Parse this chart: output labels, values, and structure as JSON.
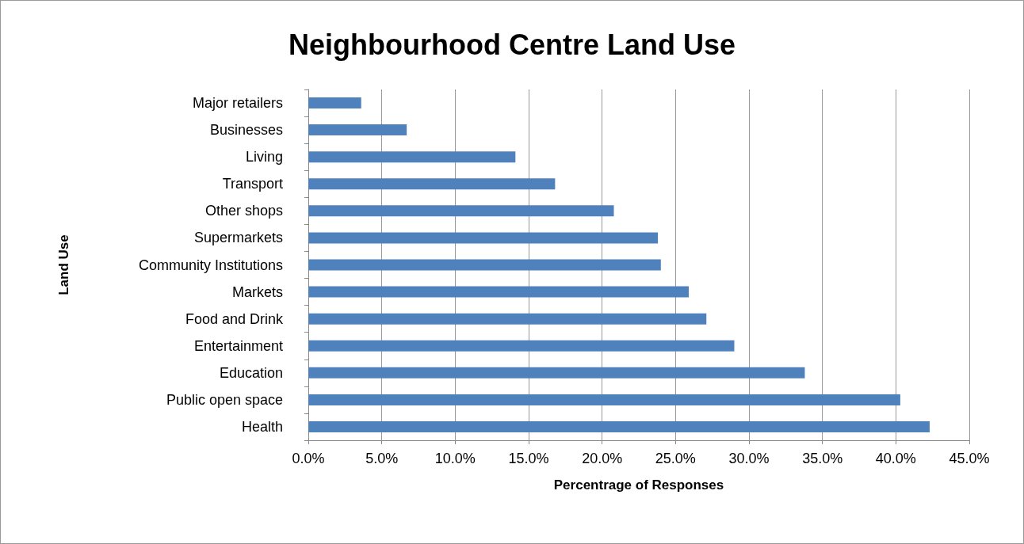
{
  "chart_data": {
    "type": "bar",
    "orientation": "horizontal",
    "title": "Neighbourhood Centre Land Use",
    "xlabel": "Percentrage of Responses",
    "ylabel": "Land Use",
    "categories": [
      "Major retailers",
      "Businesses",
      "Living",
      "Transport",
      "Other shops",
      "Supermarkets",
      "Community Institutions",
      "Markets",
      "Food and Drink",
      "Entertainment",
      "Education",
      "Public open space",
      "Health"
    ],
    "values": [
      3.6,
      6.7,
      14.1,
      16.8,
      20.8,
      23.8,
      24.0,
      25.9,
      27.1,
      29.0,
      33.8,
      40.3,
      42.3
    ],
    "color": "#4f81bd",
    "xlim": [
      0,
      45
    ],
    "xticks": [
      {
        "value": 0,
        "label": "0.0%"
      },
      {
        "value": 5,
        "label": "5.0%"
      },
      {
        "value": 10,
        "label": "10.0%"
      },
      {
        "value": 15,
        "label": "15.0%"
      },
      {
        "value": 20,
        "label": "20.0%"
      },
      {
        "value": 25,
        "label": "25.0%"
      },
      {
        "value": 30,
        "label": "30.0%"
      },
      {
        "value": 35,
        "label": "35.0%"
      },
      {
        "value": 40,
        "label": "40.0%"
      },
      {
        "value": 45,
        "label": "45.0%"
      }
    ],
    "grid": "x"
  }
}
